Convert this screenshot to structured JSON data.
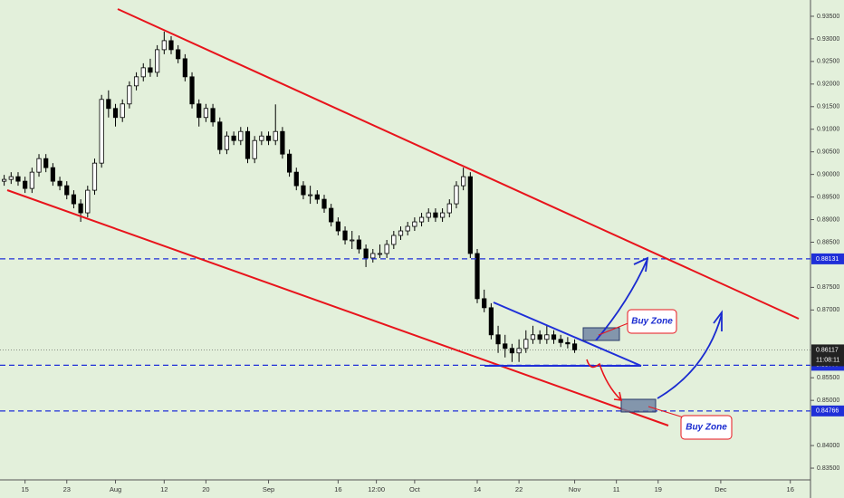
{
  "chart_data": {
    "type": "candlestick",
    "x": [
      -3,
      -2,
      -1,
      0,
      1,
      2,
      3,
      4,
      5,
      6,
      7,
      8,
      9,
      10,
      11,
      12,
      13,
      14,
      15,
      16,
      17,
      18,
      19,
      20,
      21,
      22,
      23,
      24,
      25,
      26,
      27,
      28,
      29,
      30,
      31,
      32,
      33,
      34,
      35,
      36,
      37,
      38,
      39,
      40,
      41,
      42,
      43,
      44,
      45,
      46,
      47,
      48,
      49,
      50,
      51,
      52,
      53,
      54,
      55,
      56,
      57,
      58,
      59,
      60,
      61,
      62,
      63,
      64,
      65,
      66,
      67,
      68,
      69,
      70,
      71,
      72,
      73,
      74,
      75,
      76,
      77,
      78,
      79
    ],
    "open": [
      0.8985,
      0.8989,
      0.8995,
      0.8985,
      0.8969,
      0.9005,
      0.9035,
      0.9015,
      0.8985,
      0.8975,
      0.8955,
      0.8935,
      0.8915,
      0.8965,
      0.9025,
      0.9166,
      0.9146,
      0.9126,
      0.9156,
      0.9196,
      0.9216,
      0.9236,
      0.9226,
      0.9276,
      0.9296,
      0.9276,
      0.9256,
      0.9216,
      0.9156,
      0.9126,
      0.9146,
      0.9116,
      0.9055,
      0.9085,
      0.9075,
      0.9095,
      0.9035,
      0.9075,
      0.9085,
      0.9075,
      0.9095,
      0.9045,
      0.9005,
      0.8975,
      0.8955,
      0.8955,
      0.8945,
      0.8925,
      0.8895,
      0.8875,
      0.8855,
      0.8855,
      0.8835,
      0.8815,
      0.8825,
      0.8825,
      0.8845,
      0.8865,
      0.8875,
      0.8885,
      0.8895,
      0.8905,
      0.8915,
      0.8905,
      0.8915,
      0.8935,
      0.8975,
      0.8995,
      0.8825,
      0.8725,
      0.8705,
      0.8645,
      0.8625,
      0.8615,
      0.8605,
      0.8615,
      0.8635,
      0.8645,
      0.8635,
      0.8645,
      0.8635,
      0.8628,
      0.8625
    ],
    "high": [
      0.8999,
      0.9005,
      0.9005,
      0.8995,
      0.9015,
      0.9045,
      0.9045,
      0.9025,
      0.8995,
      0.8985,
      0.8965,
      0.8945,
      0.8975,
      0.9035,
      0.9176,
      0.9186,
      0.9156,
      0.9166,
      0.9206,
      0.9226,
      0.9246,
      0.9256,
      0.9286,
      0.9316,
      0.9306,
      0.9286,
      0.9266,
      0.9226,
      0.9166,
      0.9156,
      0.9156,
      0.9126,
      0.9095,
      0.9095,
      0.9105,
      0.9105,
      0.9085,
      0.9095,
      0.9095,
      0.9155,
      0.9105,
      0.9055,
      0.9015,
      0.8985,
      0.8975,
      0.8965,
      0.8955,
      0.8935,
      0.8905,
      0.8885,
      0.8875,
      0.8865,
      0.8845,
      0.8835,
      0.8845,
      0.8855,
      0.8875,
      0.8885,
      0.8895,
      0.8905,
      0.8915,
      0.8925,
      0.8925,
      0.8925,
      0.8945,
      0.8985,
      0.9015,
      0.9005,
      0.8835,
      0.8745,
      0.8715,
      0.8665,
      0.8645,
      0.8625,
      0.8635,
      0.8655,
      0.8665,
      0.8655,
      0.8665,
      0.8655,
      0.8645,
      0.864,
      0.8635
    ],
    "low": [
      0.8975,
      0.8979,
      0.8975,
      0.8959,
      0.8959,
      0.8995,
      0.9005,
      0.8975,
      0.8965,
      0.8945,
      0.8925,
      0.8895,
      0.8905,
      0.8955,
      0.9015,
      0.9126,
      0.9106,
      0.9116,
      0.9146,
      0.9186,
      0.9206,
      0.9216,
      0.9216,
      0.9266,
      0.9266,
      0.9246,
      0.9206,
      0.9146,
      0.9106,
      0.9116,
      0.9106,
      0.9045,
      0.9045,
      0.9065,
      0.9065,
      0.9025,
      0.9025,
      0.9065,
      0.9065,
      0.9065,
      0.9035,
      0.8995,
      0.8965,
      0.8945,
      0.8935,
      0.8935,
      0.8915,
      0.8885,
      0.8865,
      0.8845,
      0.8835,
      0.8825,
      0.8795,
      0.8805,
      0.8815,
      0.8815,
      0.8835,
      0.8855,
      0.8865,
      0.8875,
      0.8885,
      0.8895,
      0.8895,
      0.8895,
      0.8905,
      0.8925,
      0.8965,
      0.8815,
      0.8715,
      0.8695,
      0.8635,
      0.8605,
      0.8595,
      0.8585,
      0.8585,
      0.8605,
      0.8625,
      0.8625,
      0.8625,
      0.8625,
      0.8618,
      0.8615,
      0.8605
    ],
    "close": [
      0.8989,
      0.8995,
      0.8985,
      0.8969,
      0.9005,
      0.9035,
      0.9015,
      0.8985,
      0.8975,
      0.8955,
      0.8935,
      0.8915,
      0.8965,
      0.9025,
      0.9166,
      0.9146,
      0.9126,
      0.9156,
      0.9196,
      0.9216,
      0.9236,
      0.9226,
      0.9276,
      0.9296,
      0.9276,
      0.9256,
      0.9216,
      0.9156,
      0.9126,
      0.9146,
      0.9116,
      0.9055,
      0.9085,
      0.9075,
      0.9095,
      0.9035,
      0.9075,
      0.9085,
      0.9075,
      0.9095,
      0.9045,
      0.9005,
      0.8975,
      0.8955,
      0.8955,
      0.8945,
      0.8925,
      0.8895,
      0.8875,
      0.8855,
      0.8855,
      0.8835,
      0.8815,
      0.8825,
      0.8825,
      0.8845,
      0.8865,
      0.8875,
      0.8885,
      0.8895,
      0.8905,
      0.8915,
      0.8905,
      0.8915,
      0.8935,
      0.8975,
      0.8995,
      0.8825,
      0.8725,
      0.8705,
      0.8645,
      0.8625,
      0.8615,
      0.8605,
      0.8615,
      0.8635,
      0.8645,
      0.8635,
      0.8645,
      0.8635,
      0.8628,
      0.8625,
      0.86117
    ],
    "up_color": "#ffffff",
    "down_color": "#000000",
    "background": "#e3f0db",
    "xlim": [
      -3.6,
      112.9
    ],
    "ylim": [
      0.8324,
      0.9386
    ],
    "xticks": [
      {
        "value": 0,
        "label": "15"
      },
      {
        "value": 6,
        "label": "23"
      },
      {
        "value": 13,
        "label": "Aug"
      },
      {
        "value": 20,
        "label": "12"
      },
      {
        "value": 26,
        "label": "20"
      },
      {
        "value": 35,
        "label": "Sep"
      },
      {
        "value": 45,
        "label": "16"
      },
      {
        "value": 50.5,
        "label": "12:00"
      },
      {
        "value": 56,
        "label": "Oct"
      },
      {
        "value": 65,
        "label": "14"
      },
      {
        "value": 71,
        "label": "22"
      },
      {
        "value": 79,
        "label": "Nov"
      },
      {
        "value": 85,
        "label": "11"
      },
      {
        "value": 91,
        "label": "19"
      },
      {
        "value": 100,
        "label": "Dec"
      },
      {
        "value": 110,
        "label": "16"
      }
    ],
    "yticks": [
      {
        "value": 0.935,
        "label": "0.93500"
      },
      {
        "value": 0.93,
        "label": "0.93000"
      },
      {
        "value": 0.925,
        "label": "0.92500"
      },
      {
        "value": 0.92,
        "label": "0.92000"
      },
      {
        "value": 0.915,
        "label": "0.91500"
      },
      {
        "value": 0.91,
        "label": "0.91000"
      },
      {
        "value": 0.905,
        "label": "0.90500"
      },
      {
        "value": 0.9,
        "label": "0.90000"
      },
      {
        "value": 0.895,
        "label": "0.89500"
      },
      {
        "value": 0.89,
        "label": "0.89000"
      },
      {
        "value": 0.885,
        "label": "0.88500"
      },
      {
        "value": 0.875,
        "label": "0.87500"
      },
      {
        "value": 0.87,
        "label": "0.87000"
      },
      {
        "value": 0.855,
        "label": "0.85500"
      },
      {
        "value": 0.85,
        "label": "0.85000"
      },
      {
        "value": 0.84,
        "label": "0.84000"
      },
      {
        "value": 0.835,
        "label": "0.83500"
      }
    ],
    "levels": [
      0.88131,
      0.85777,
      0.84766
    ],
    "level_color": "#1f2fd8",
    "countdown": "11:08:11",
    "annotations": [
      "Buy Zone",
      "Buy Zone"
    ]
  }
}
